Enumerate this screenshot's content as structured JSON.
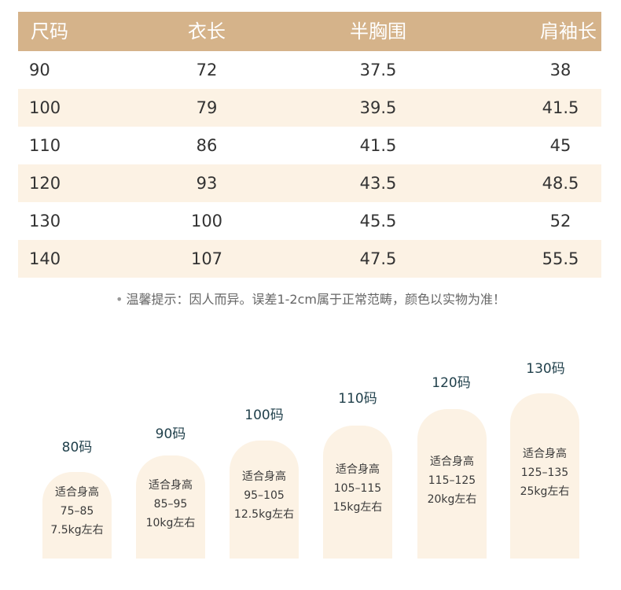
{
  "table": {
    "headers": [
      "尺码",
      "衣长",
      "半胸围",
      "肩袖长"
    ],
    "rows": [
      [
        "90",
        "72",
        "37.5",
        "38"
      ],
      [
        "100",
        "79",
        "39.5",
        "41.5"
      ],
      [
        "110",
        "86",
        "41.5",
        "45"
      ],
      [
        "120",
        "93",
        "43.5",
        "48.5"
      ],
      [
        "130",
        "100",
        "45.5",
        "52"
      ],
      [
        "140",
        "107",
        "47.5",
        "55.5"
      ]
    ]
  },
  "note": "温馨提示：因人而异。误差1-2cm属于正常范畴，颜色以实物为准！",
  "sizes": [
    {
      "label": "80码",
      "fit": "适合身高",
      "height": "75–85",
      "weight": "7.5kg左右"
    },
    {
      "label": "90码",
      "fit": "适合身高",
      "height": "85–95",
      "weight": "10kg左右"
    },
    {
      "label": "100码",
      "fit": "适合身高",
      "height": "95–105",
      "weight": "12.5kg左右"
    },
    {
      "label": "110码",
      "fit": "适合身高",
      "height": "105–115",
      "weight": "15kg左右"
    },
    {
      "label": "120码",
      "fit": "适合身高",
      "height": "115–125",
      "weight": "20kg左右"
    },
    {
      "label": "130码",
      "fit": "适合身高",
      "height": "125–135",
      "weight": "25kg左右"
    }
  ],
  "colors": {
    "header_bg": "#d5b38a",
    "row_shade": "#fcf2e4",
    "bar_fill": "#fcf2e4"
  }
}
